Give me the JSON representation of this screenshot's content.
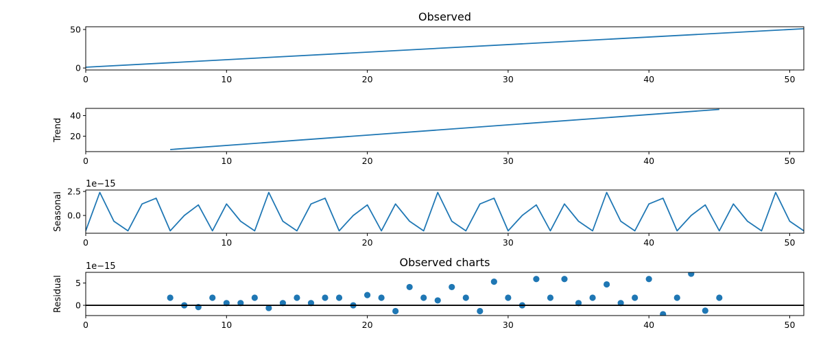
{
  "chart_data": [
    {
      "type": "line",
      "title": "Observed",
      "ylabel": "",
      "offset_text": "",
      "xlim": [
        0,
        51
      ],
      "ylim": [
        -2.55,
        53.55
      ],
      "xticks": [
        0,
        10,
        20,
        30,
        40,
        50
      ],
      "yticks": [
        0,
        50
      ],
      "ytick_labels": [
        "0",
        "50"
      ],
      "series": [
        {
          "x": [
            0,
            51
          ],
          "values": [
            1,
            51
          ]
        }
      ]
    },
    {
      "type": "line",
      "title": "",
      "ylabel": "Trend",
      "offset_text": "",
      "xlim": [
        0,
        51
      ],
      "ylim": [
        5,
        47
      ],
      "xticks": [
        0,
        10,
        20,
        30,
        40,
        50
      ],
      "yticks": [
        20,
        40
      ],
      "ytick_labels": [
        "20",
        "40"
      ],
      "series": [
        {
          "x": [
            6,
            45
          ],
          "values": [
            7,
            46
          ]
        }
      ]
    },
    {
      "type": "line",
      "title": "",
      "ylabel": "Seasonal",
      "offset_text": "1e−15",
      "xlim": [
        0,
        51
      ],
      "ylim": [
        -1.85,
        2.65
      ],
      "xticks": [
        0,
        10,
        20,
        30,
        40,
        50
      ],
      "yticks": [
        0,
        2.5
      ],
      "ytick_labels": [
        "0.0",
        "2.5"
      ],
      "series": [
        {
          "x": [
            0,
            1,
            2,
            3,
            4,
            5,
            6,
            7,
            8,
            9,
            10,
            11,
            12,
            13,
            14,
            15,
            16,
            17,
            18,
            19,
            20,
            21,
            22,
            23,
            24,
            25,
            26,
            27,
            28,
            29,
            30,
            31,
            32,
            33,
            34,
            35,
            36,
            37,
            38,
            39,
            40,
            41,
            42,
            43,
            44,
            45,
            46,
            47,
            48,
            49,
            50,
            51
          ],
          "values": [
            -1.6,
            2.4,
            -0.6,
            -1.6,
            1.2,
            1.8,
            -1.6,
            0.0,
            1.1,
            -1.6,
            1.2,
            -0.6,
            -1.6,
            2.4,
            -0.6,
            -1.6,
            1.2,
            1.8,
            -1.6,
            0.0,
            1.1,
            -1.6,
            1.2,
            -0.6,
            -1.6,
            2.4,
            -0.6,
            -1.6,
            1.2,
            1.8,
            -1.6,
            0.0,
            1.1,
            -1.6,
            1.2,
            -0.6,
            -1.6,
            2.4,
            -0.6,
            -1.6,
            1.2,
            1.8,
            -1.6,
            0.0,
            1.1,
            -1.6,
            1.2,
            -0.6,
            -1.6,
            2.4,
            -0.6,
            -1.6
          ]
        }
      ]
    },
    {
      "type": "scatter",
      "title": "Observed charts",
      "ylabel": "Residual",
      "offset_text": "1e−15",
      "xlim": [
        0,
        51
      ],
      "ylim": [
        -2.3,
        7.4
      ],
      "xticks": [
        0,
        10,
        20,
        30,
        40,
        50
      ],
      "yticks": [
        0,
        5
      ],
      "ytick_labels": [
        "0",
        "5"
      ],
      "hline": 0,
      "series": [
        {
          "x": [
            6,
            7,
            8,
            9,
            10,
            11,
            12,
            13,
            14,
            15,
            16,
            17,
            18,
            19,
            20,
            21,
            22,
            23,
            24,
            25,
            26,
            27,
            28,
            29,
            30,
            31,
            32,
            33,
            34,
            35,
            36,
            37,
            38,
            39,
            40,
            41,
            42,
            43,
            44,
            45
          ],
          "values": [
            1.7,
            0.0,
            -0.4,
            1.7,
            0.5,
            0.5,
            1.7,
            -0.6,
            0.5,
            1.7,
            0.5,
            1.7,
            1.7,
            0.0,
            2.3,
            1.7,
            -1.3,
            4.1,
            1.7,
            1.1,
            4.1,
            1.7,
            -1.3,
            5.3,
            1.7,
            0.0,
            5.9,
            1.7,
            5.9,
            0.5,
            1.7,
            4.7,
            0.5,
            1.7,
            5.9,
            -2.0,
            1.7,
            7.1,
            -1.2,
            1.7
          ]
        }
      ]
    }
  ],
  "colors": {
    "series": "#1f77b4",
    "axis": "#000000"
  }
}
